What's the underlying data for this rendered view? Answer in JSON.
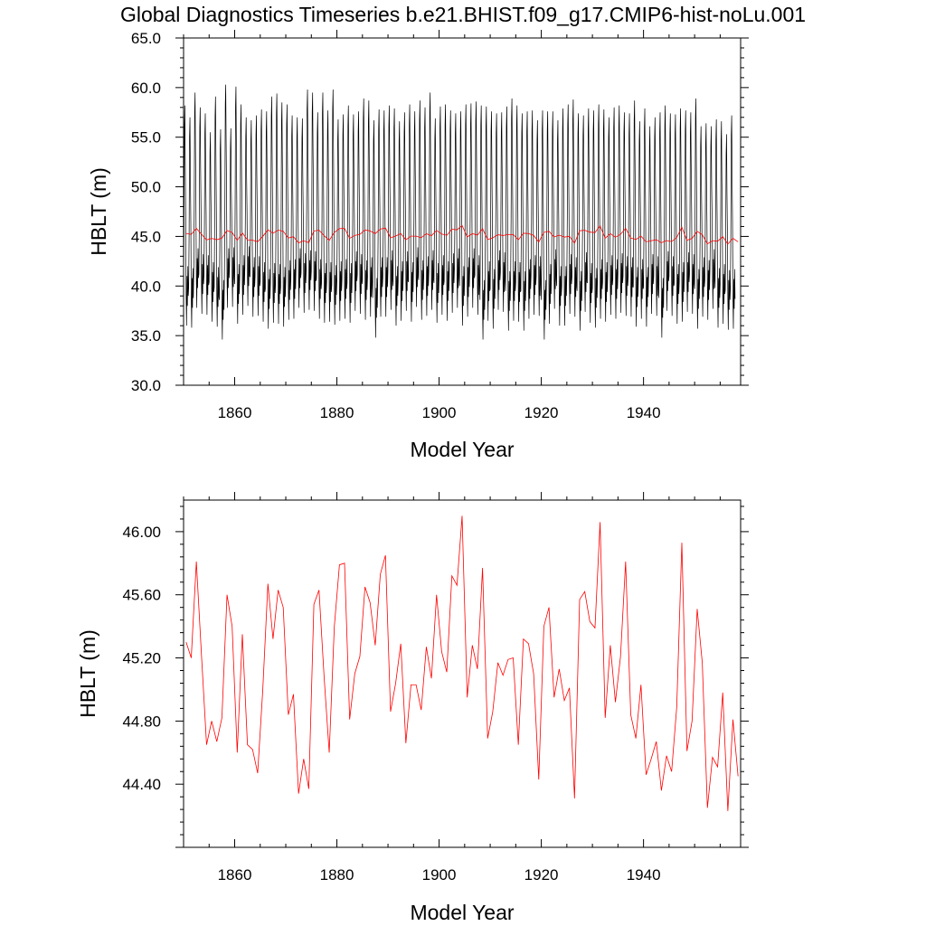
{
  "title": "Global Diagnostics Timeseries b.e21.BHIST.f09_g17.CMIP6-hist-noLu.001",
  "colors": {
    "monthly": "#000000",
    "annual": "#ff0000",
    "axis": "#000000"
  },
  "chart_data": [
    {
      "type": "line",
      "xlabel": "Model Year",
      "ylabel": "HBLT (m)",
      "xlim": [
        1850,
        1959
      ],
      "ylim": [
        30,
        65
      ],
      "xticks": [
        1860,
        1880,
        1900,
        1920,
        1940
      ],
      "yticks": [
        30,
        35,
        40,
        45,
        50,
        55,
        60,
        65
      ],
      "ytick_labels": [
        "30.0",
        "35.0",
        "40.0",
        "45.0",
        "50.0",
        "55.0",
        "60.0",
        "65.0"
      ],
      "series": [
        {
          "kind": "monthly",
          "color": "#000000",
          "x_start": 1850,
          "peaks": [
            58.2,
            57.0,
            59.5,
            58.0,
            57.4,
            55.5,
            59.1,
            55.8,
            60.3,
            55.9,
            60.1,
            58.3,
            57.0,
            56.7,
            57.2,
            57.8,
            57.6,
            59.1,
            59.4,
            58.5,
            58.3,
            57.2,
            57.0,
            56.9,
            59.8,
            59.5,
            57.5,
            59.5,
            57.7,
            59.8,
            56.8,
            57.3,
            58.2,
            57.3,
            57.6,
            58.9,
            58.7,
            56.7,
            57.8,
            57.7,
            58.2,
            57.9,
            56.6,
            57.5,
            58.3,
            57.6,
            58.7,
            58.0,
            59.5,
            56.9,
            58.1,
            58.3,
            57.7,
            57.4,
            57.6,
            58.3,
            58.4,
            58.6,
            58.2,
            58.1,
            57.6,
            57.4,
            57.5,
            58.1,
            58.9,
            58.2,
            57.4,
            57.6,
            57.7,
            56.7,
            57.7,
            57.6,
            57.6,
            56.7,
            57.9,
            58.3,
            58.8,
            57.4,
            57.2,
            57.9,
            57.7,
            58.3,
            57.8,
            57.0,
            58.0,
            58.2,
            57.5,
            57.4,
            58.7,
            56.6,
            57.9,
            56.1,
            57.0,
            57.5,
            58.2,
            57.4,
            57.3,
            57.9,
            57.7,
            57.5,
            58.9,
            56.1,
            56.4,
            56.1,
            56.8,
            56.6,
            55.3,
            57.2
          ],
          "troughs": [
            36.0,
            35.8,
            37.8,
            37.2,
            37.1,
            36.4,
            35.9,
            34.6,
            37.8,
            37.9,
            36.2,
            37.1,
            38.0,
            36.9,
            37.0,
            36.4,
            35.7,
            36.3,
            36.2,
            35.9,
            36.6,
            36.7,
            37.8,
            37.3,
            37.6,
            37.5,
            36.7,
            36.3,
            36.4,
            36.1,
            36.5,
            36.7,
            36.3,
            37.5,
            37.2,
            36.6,
            36.9,
            34.8,
            36.9,
            36.9,
            37.6,
            36.0,
            36.5,
            37.5,
            36.4,
            37.9,
            36.6,
            37.0,
            37.6,
            36.3,
            37.1,
            36.5,
            37.3,
            37.8,
            36.0,
            36.9,
            37.8,
            37.1,
            34.6,
            36.5,
            35.7,
            37.6,
            37.4,
            35.5,
            36.5,
            36.4,
            35.5,
            36.7,
            37.1,
            37.0,
            34.6,
            36.2,
            37.7,
            36.0,
            36.0,
            37.2,
            36.9,
            35.5,
            37.4,
            36.3,
            35.8,
            36.7,
            36.4,
            37.1,
            36.7,
            37.3,
            37.0,
            36.9,
            35.9,
            36.7,
            35.9,
            37.2,
            37.0,
            34.8,
            37.5,
            37.0,
            36.2,
            36.4,
            37.4,
            37.2,
            35.7,
            36.9,
            36.6,
            37.7,
            35.8,
            36.2,
            35.6,
            35.7
          ]
        },
        {
          "kind": "annual",
          "color": "#ff0000",
          "x_start": 1850.5,
          "values": [
            45.3,
            45.2,
            45.81,
            45.22,
            44.65,
            44.8,
            44.67,
            44.82,
            45.6,
            45.4,
            44.6,
            45.35,
            44.65,
            44.62,
            44.47,
            45.0,
            45.67,
            45.32,
            45.63,
            45.52,
            44.84,
            44.97,
            44.34,
            44.56,
            44.37,
            45.54,
            45.63,
            45.08,
            44.6,
            45.4,
            45.79,
            45.8,
            44.81,
            45.1,
            45.21,
            45.65,
            45.55,
            45.28,
            45.73,
            45.85,
            44.86,
            45.04,
            45.29,
            44.66,
            45.03,
            45.03,
            44.87,
            45.27,
            45.07,
            45.6,
            45.24,
            45.11,
            45.72,
            45.66,
            46.1,
            44.95,
            45.28,
            45.13,
            45.77,
            44.69,
            44.86,
            45.17,
            45.09,
            45.19,
            45.2,
            44.65,
            45.32,
            45.29,
            45.1,
            44.43,
            45.4,
            45.52,
            44.95,
            45.13,
            44.93,
            45.01,
            44.31,
            45.57,
            45.62,
            45.43,
            45.39,
            46.06,
            44.82,
            45.28,
            44.92,
            45.21,
            45.81,
            44.84,
            44.69,
            45.03,
            44.46,
            44.56,
            44.67,
            44.36,
            44.58,
            44.48,
            44.89,
            45.93,
            44.61,
            44.8,
            45.51,
            45.17,
            44.25,
            44.57,
            44.51,
            44.98,
            44.23,
            44.81,
            44.45
          ]
        }
      ]
    },
    {
      "type": "line",
      "xlabel": "Model Year",
      "ylabel": "HBLT (m)",
      "xlim": [
        1850,
        1959
      ],
      "ylim": [
        44.0,
        46.2
      ],
      "xticks": [
        1860,
        1880,
        1900,
        1920,
        1940
      ],
      "yticks": [
        44.4,
        44.8,
        45.2,
        45.6,
        46.0
      ],
      "ytick_labels": [
        "44.40",
        "44.80",
        "45.20",
        "45.60",
        "46.00"
      ],
      "series": [
        {
          "kind": "annual-ref",
          "color": "#ff0000"
        }
      ]
    }
  ]
}
